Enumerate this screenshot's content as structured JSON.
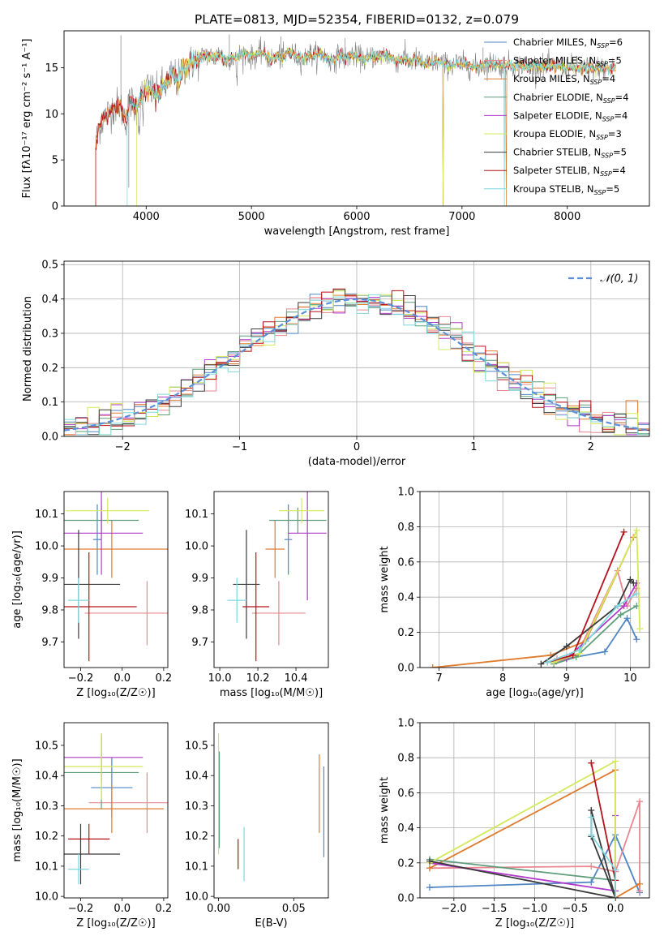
{
  "figure_title": "PLATE=0813, MJD=52354, FIBERID=0132, z=0.079",
  "colors": {
    "Chabrier MILES": "#4f86c6",
    "Salpeter MILES": "#e8878f",
    "Kroupa MILES": "#e07b2e",
    "Chabrier ELODIE": "#5d9e7a",
    "Salpeter ELODIE": "#b03ac9",
    "Kroupa ELODIE": "#d4e85a",
    "Chabrier STELIB": "#3a3a3a",
    "Salpeter STELIB": "#b5121b",
    "Kroupa STELIB": "#7fd8df",
    "spectrum_grey": "#808080",
    "grid": "#b0b0b0",
    "gaussian": "#5b8fd9"
  },
  "chart_data": [
    {
      "id": "spectrum",
      "type": "line",
      "title": "PLATE=0813, MJD=52354, FIBERID=0132, z=0.079",
      "xlabel": "wavelength [Angstrom, rest frame]",
      "ylabel": "Flux [fλ10⁻¹⁷ erg cm⁻² s⁻¹ A⁻¹]",
      "xlim": [
        3220,
        8780
      ],
      "ylim": [
        0,
        19
      ],
      "xticks": [
        4000,
        5000,
        6000,
        7000,
        8000
      ],
      "yticks": [
        0,
        5,
        10,
        15
      ],
      "grid": false,
      "legend_position": "right",
      "legend": [
        {
          "name": "Chabrier MILES",
          "nssp": "6"
        },
        {
          "name": "Salpeter MILES",
          "nssp": "5"
        },
        {
          "name": "Kroupa MILES",
          "nssp": "4"
        },
        {
          "name": "Chabrier ELODIE",
          "nssp": "4"
        },
        {
          "name": "Salpeter ELODIE",
          "nssp": "4"
        },
        {
          "name": "Kroupa ELODIE",
          "nssp": "3"
        },
        {
          "name": "Chabrier STELIB",
          "nssp": "5"
        },
        {
          "name": "Salpeter STELIB",
          "nssp": "4"
        },
        {
          "name": "Kroupa STELIB",
          "nssp": "5"
        }
      ],
      "series": [
        {
          "name": "data",
          "x": [
            3520,
            3550,
            3600,
            3650,
            3700,
            3750,
            3800,
            3850,
            3900,
            3950,
            4000,
            4050,
            4100,
            4150,
            4200,
            4250,
            4300,
            4350,
            4400,
            4450,
            4500,
            4550,
            4600,
            4650,
            4700,
            4750,
            4800,
            4850,
            4900,
            4950,
            5000,
            5050,
            5100,
            5150,
            5200,
            5250,
            5300,
            5350,
            5400,
            5450,
            5500,
            5550,
            5600,
            5650,
            5700,
            5750,
            5800,
            5850,
            5900,
            5950,
            6000,
            6050,
            6100,
            6150,
            6200,
            6250,
            6300,
            6350,
            6400,
            6450,
            6500,
            6550,
            6600,
            6650,
            6700,
            6750,
            6800,
            6850,
            6900,
            6950,
            7000,
            7050,
            7100,
            7150,
            7200,
            7250,
            7300,
            7350,
            7400,
            7450,
            7500,
            7550,
            7600,
            7650,
            7700,
            7750,
            7800,
            7850,
            7900,
            7950,
            8000,
            8050,
            8100,
            8150,
            8200,
            8250,
            8300,
            8350,
            8400,
            8450
          ],
          "y": [
            6.5,
            8.5,
            9.6,
            10.2,
            10.8,
            11.0,
            9.3,
            11.5,
            10.6,
            11.8,
            13.0,
            12.5,
            12.2,
            13.0,
            13.2,
            14.4,
            13.6,
            15.0,
            15.2,
            15.6,
            15.8,
            16.4,
            16.3,
            16.0,
            16.6,
            15.7,
            16.2,
            16.0,
            16.5,
            16.6,
            16.1,
            16.4,
            16.7,
            16.2,
            15.8,
            16.3,
            16.0,
            16.7,
            16.4,
            16.1,
            15.9,
            16.5,
            16.3,
            16.6,
            16.2,
            15.7,
            16.0,
            16.4,
            15.9,
            16.5,
            16.2,
            16.0,
            15.9,
            16.3,
            16.1,
            16.5,
            16.2,
            15.8,
            15.8,
            16.1,
            15.6,
            15.9,
            15.7,
            15.3,
            15.5,
            15.7,
            15.6,
            15.3,
            15.2,
            15.5,
            15.4,
            15.3,
            15.1,
            15.0,
            15.3,
            15.4,
            15.5,
            15.2,
            15.3,
            15.4,
            15.1,
            15.3,
            15.2,
            15.0,
            15.3,
            15.1,
            15.0,
            15.2,
            15.2,
            15.1,
            15.0,
            15.1,
            14.9,
            15.0,
            15.1,
            14.8,
            15.0,
            14.9,
            14.8,
            15.0
          ]
        }
      ]
    },
    {
      "id": "residuals",
      "type": "bar",
      "xlabel": "(data-model)/error",
      "ylabel": "Normed distribution",
      "xlim": [
        -2.5,
        2.5
      ],
      "ylim": [
        0,
        0.51
      ],
      "xticks": [
        -2,
        -1,
        0,
        1,
        2
      ],
      "yticks": [
        0.0,
        0.1,
        0.2,
        0.3,
        0.4,
        0.5
      ],
      "grid": true,
      "legend_position": "top-right",
      "legend": [
        {
          "name": "𝒩(0, 1)"
        }
      ],
      "bin_width": 0.1,
      "bin_start": -2.5
    },
    {
      "id": "age_vs_Z",
      "type": "scatter",
      "xlabel": "Z [log₁₀(Z/Z☉)]",
      "ylabel": "age  [log₁₀(age/yr)]",
      "xlim": [
        -0.28,
        0.22
      ],
      "ylim": [
        9.62,
        10.17
      ],
      "xticks": [
        -0.2,
        0.0,
        0.2
      ],
      "yticks": [
        9.7,
        9.8,
        9.9,
        10.0,
        10.1
      ],
      "grid": false,
      "points": [
        {
          "name": "Chabrier MILES",
          "x": -0.12,
          "y": 10.02,
          "xerr": 0.02,
          "yerr": 0.11
        },
        {
          "name": "Salpeter MILES",
          "x": 0.12,
          "y": 9.79,
          "xerr": 0.3,
          "yerr": 0.1
        },
        {
          "name": "Kroupa MILES",
          "x": -0.05,
          "y": 9.99,
          "xerr": 0.3,
          "yerr": 0.09
        },
        {
          "name": "Chabrier ELODIE",
          "x": -0.1,
          "y": 10.08,
          "xerr": 0.18,
          "yerr": 0.04
        },
        {
          "name": "Salpeter ELODIE",
          "x": -0.1,
          "y": 10.04,
          "xerr": 0.2,
          "yerr": 0.13
        },
        {
          "name": "Kroupa ELODIE",
          "x": -0.07,
          "y": 10.11,
          "xerr": 0.2,
          "yerr": 0.04
        },
        {
          "name": "Chabrier STELIB",
          "x": -0.21,
          "y": 9.88,
          "xerr": 0.2,
          "yerr": 0.17
        },
        {
          "name": "Salpeter STELIB",
          "x": -0.16,
          "y": 9.81,
          "xerr": 0.23,
          "yerr": 0.17
        },
        {
          "name": "Kroupa STELIB",
          "x": -0.21,
          "y": 9.83,
          "xerr": 0.05,
          "yerr": 0.07
        }
      ]
    },
    {
      "id": "age_vs_mass",
      "type": "scatter",
      "xlabel": "mass [log₁₀(M/M☉)]",
      "ylabel": "",
      "xlim": [
        9.97,
        10.57
      ],
      "ylim": [
        9.62,
        10.17
      ],
      "xticks": [
        10.0,
        10.2,
        10.4
      ],
      "yticks": [
        9.7,
        9.8,
        9.9,
        10.0,
        10.1
      ],
      "grid": false,
      "points": [
        {
          "name": "Chabrier MILES",
          "x": 10.36,
          "y": 10.02,
          "xerr": 0.02,
          "yerr": 0.11
        },
        {
          "name": "Salpeter MILES",
          "x": 10.31,
          "y": 9.79,
          "xerr": 0.14,
          "yerr": 0.1
        },
        {
          "name": "Kroupa MILES",
          "x": 10.29,
          "y": 9.99,
          "xerr": 0.05,
          "yerr": 0.09
        },
        {
          "name": "Chabrier ELODIE",
          "x": 10.41,
          "y": 10.08,
          "xerr": 0.15,
          "yerr": 0.04
        },
        {
          "name": "Salpeter ELODIE",
          "x": 10.46,
          "y": 10.04,
          "xerr": 0.1,
          "yerr": 0.21
        },
        {
          "name": "Kroupa ELODIE",
          "x": 10.43,
          "y": 10.11,
          "xerr": 0.12,
          "yerr": 0.04
        },
        {
          "name": "Chabrier STELIB",
          "x": 10.14,
          "y": 9.88,
          "xerr": 0.07,
          "yerr": 0.17
        },
        {
          "name": "Salpeter STELIB",
          "x": 10.19,
          "y": 9.81,
          "xerr": 0.07,
          "yerr": 0.17
        },
        {
          "name": "Kroupa STELIB",
          "x": 10.09,
          "y": 9.83,
          "xerr": 0.05,
          "yerr": 0.07
        }
      ]
    },
    {
      "id": "weight_vs_age",
      "type": "line",
      "xlabel": "age  [log₁₀(age/yr)]",
      "ylabel": "mass weight",
      "xlim": [
        6.7,
        10.3
      ],
      "ylim": [
        0,
        1.0
      ],
      "xticks": [
        7,
        8,
        9,
        10
      ],
      "yticks": [
        0.0,
        0.2,
        0.4,
        0.6,
        0.8,
        1.0
      ],
      "grid": true,
      "series": [
        {
          "name": "Chabrier MILES",
          "x": [
            8.7,
            9.0,
            9.6,
            9.95,
            10.1
          ],
          "y": [
            0.03,
            0.05,
            0.09,
            0.28,
            0.16
          ]
        },
        {
          "name": "Salpeter MILES",
          "x": [
            8.85,
            9.2,
            9.8,
            9.95,
            10.1
          ],
          "y": [
            0.05,
            0.1,
            0.55,
            0.35,
            0.45
          ]
        },
        {
          "name": "Kroupa MILES",
          "x": [
            6.9,
            8.75,
            9.3,
            10.05
          ],
          "y": [
            0.0,
            0.07,
            0.15,
            0.74
          ]
        },
        {
          "name": "Chabrier ELODIE",
          "x": [
            8.8,
            9.15,
            9.85,
            10.1
          ],
          "y": [
            0.02,
            0.06,
            0.3,
            0.35
          ]
        },
        {
          "name": "Salpeter ELODIE",
          "x": [
            8.8,
            9.0,
            9.9,
            10.1
          ],
          "y": [
            0.03,
            0.05,
            0.35,
            0.48
          ]
        },
        {
          "name": "Kroupa ELODIE",
          "x": [
            8.8,
            9.2,
            10.1,
            10.15
          ],
          "y": [
            0.03,
            0.08,
            0.78,
            0.22
          ]
        },
        {
          "name": "Chabrier STELIB",
          "x": [
            8.6,
            9.0,
            9.8,
            10.0,
            10.05
          ],
          "y": [
            0.02,
            0.12,
            0.35,
            0.5,
            0.48
          ]
        },
        {
          "name": "Salpeter STELIB",
          "x": [
            8.7,
            9.1,
            9.9
          ],
          "y": [
            0.03,
            0.07,
            0.77
          ]
        },
        {
          "name": "Kroupa STELIB",
          "x": [
            8.7,
            9.2,
            9.8,
            10.1
          ],
          "y": [
            0.03,
            0.1,
            0.35,
            0.42
          ]
        }
      ]
    },
    {
      "id": "mass_vs_Z",
      "type": "scatter",
      "xlabel": "Z [log₁₀(Z/Z☉)]",
      "ylabel": "mass [log₁₀(M/M☉)]",
      "xlim": [
        -0.28,
        0.22
      ],
      "ylim": [
        9.995,
        10.575
      ],
      "xticks": [
        -0.2,
        0.0,
        0.2
      ],
      "yticks": [
        10.0,
        10.1,
        10.2,
        10.3,
        10.4,
        10.5
      ],
      "grid": false,
      "points": [
        {
          "name": "Chabrier MILES",
          "x": -0.05,
          "y": 10.36,
          "xerr": 0.1,
          "yerr": 0.1
        },
        {
          "name": "Salpeter MILES",
          "x": 0.12,
          "y": 10.31,
          "xerr": 0.28,
          "yerr": 0.1
        },
        {
          "name": "Kroupa MILES",
          "x": -0.05,
          "y": 10.29,
          "xerr": 0.25,
          "yerr": 0.08
        },
        {
          "name": "Chabrier ELODIE",
          "x": -0.1,
          "y": 10.41,
          "xerr": 0.18,
          "yerr": 0.12
        },
        {
          "name": "Salpeter ELODIE",
          "x": -0.1,
          "y": 10.46,
          "xerr": 0.2,
          "yerr": 0.08
        },
        {
          "name": "Kroupa ELODIE",
          "x": -0.1,
          "y": 10.43,
          "xerr": 0.2,
          "yerr": 0.11
        },
        {
          "name": "Chabrier STELIB",
          "x": -0.2,
          "y": 10.14,
          "xerr": 0.19,
          "yerr": 0.1
        },
        {
          "name": "Salpeter STELIB",
          "x": -0.16,
          "y": 10.19,
          "xerr": 0.1,
          "yerr": 0.05
        },
        {
          "name": "Kroupa STELIB",
          "x": -0.21,
          "y": 10.09,
          "xerr": 0.05,
          "yerr": 0.05
        }
      ]
    },
    {
      "id": "mass_vs_ebv",
      "type": "scatter",
      "xlabel": "E(B-V)",
      "ylabel": "",
      "xlim": [
        -0.003,
        0.073
      ],
      "ylim": [
        9.995,
        10.575
      ],
      "xticks": [
        0.0,
        0.05
      ],
      "yticks": [
        10.0,
        10.1,
        10.2,
        10.3,
        10.4,
        10.5
      ],
      "grid": false,
      "points": [
        {
          "name": "Chabrier MILES",
          "x": 0.07,
          "y": 10.28,
          "xerr": 0,
          "yerr": 0.15
        },
        {
          "name": "Kroupa MILES",
          "x": 0.067,
          "y": 10.34,
          "xerr": 0,
          "yerr": 0.13
        },
        {
          "name": "Kroupa ELODIE",
          "x": 0.0,
          "y": 10.34,
          "xerr": 0,
          "yerr": 0.2
        },
        {
          "name": "Chabrier ELODIE",
          "x": 0.0005,
          "y": 10.32,
          "xerr": 0,
          "yerr": 0.16
        },
        {
          "name": "Salpeter STELIB",
          "x": 0.013,
          "y": 10.14,
          "xerr": 0,
          "yerr": 0.05
        },
        {
          "name": "Kroupa STELIB",
          "x": 0.017,
          "y": 10.14,
          "xerr": 0,
          "yerr": 0.09
        }
      ]
    },
    {
      "id": "weight_vs_Z",
      "type": "line",
      "xlabel": "Z [log₁₀(Z/Z☉)]",
      "ylabel": "mass weight",
      "xlim": [
        -2.42,
        0.42
      ],
      "ylim": [
        0,
        1.0
      ],
      "xticks": [
        -2.0,
        -1.5,
        -1.0,
        -0.5,
        0.0
      ],
      "yticks": [
        0.0,
        0.2,
        0.4,
        0.6,
        0.8,
        1.0
      ],
      "grid": true,
      "series": [
        {
          "name": "Chabrier MILES",
          "x": [
            -2.3,
            -0.3,
            0.0,
            0.3
          ],
          "y": [
            0.06,
            0.09,
            0.36,
            0.03
          ]
        },
        {
          "name": "Salpeter MILES",
          "x": [
            -2.3,
            -0.3,
            0.0,
            0.3,
            0.3
          ],
          "y": [
            0.17,
            0.18,
            0.15,
            0.55,
            0.04
          ]
        },
        {
          "name": "Kroupa MILES",
          "x": [
            -2.3,
            0.0,
            0.0,
            0.3
          ],
          "y": [
            0.17,
            0.73,
            0.0,
            0.08
          ]
        },
        {
          "name": "Chabrier ELODIE",
          "x": [
            -2.3,
            0.0,
            0.0
          ],
          "y": [
            0.22,
            0.1,
            0.33
          ]
        },
        {
          "name": "Salpeter ELODIE",
          "x": [
            -2.3,
            0.0,
            0.0
          ],
          "y": [
            0.2,
            0.04,
            0.47
          ]
        },
        {
          "name": "Kroupa ELODIE",
          "x": [
            -2.3,
            0.0,
            0.0
          ],
          "y": [
            0.2,
            0.78,
            0.0
          ]
        },
        {
          "name": "Chabrier STELIB",
          "x": [
            -2.3,
            0.0,
            -0.3,
            -0.3,
            0.0
          ],
          "y": [
            0.21,
            0.0,
            0.5,
            0.35,
            0.0
          ]
        },
        {
          "name": "Salpeter STELIB",
          "x": [
            -0.3,
            0.0,
            0.0
          ],
          "y": [
            0.77,
            0.1,
            0.0
          ]
        },
        {
          "name": "Kroupa STELIB",
          "x": [
            -0.3,
            -0.3,
            0.0,
            0.0
          ],
          "y": [
            0.46,
            0.36,
            0.16,
            0.0
          ]
        }
      ]
    }
  ]
}
